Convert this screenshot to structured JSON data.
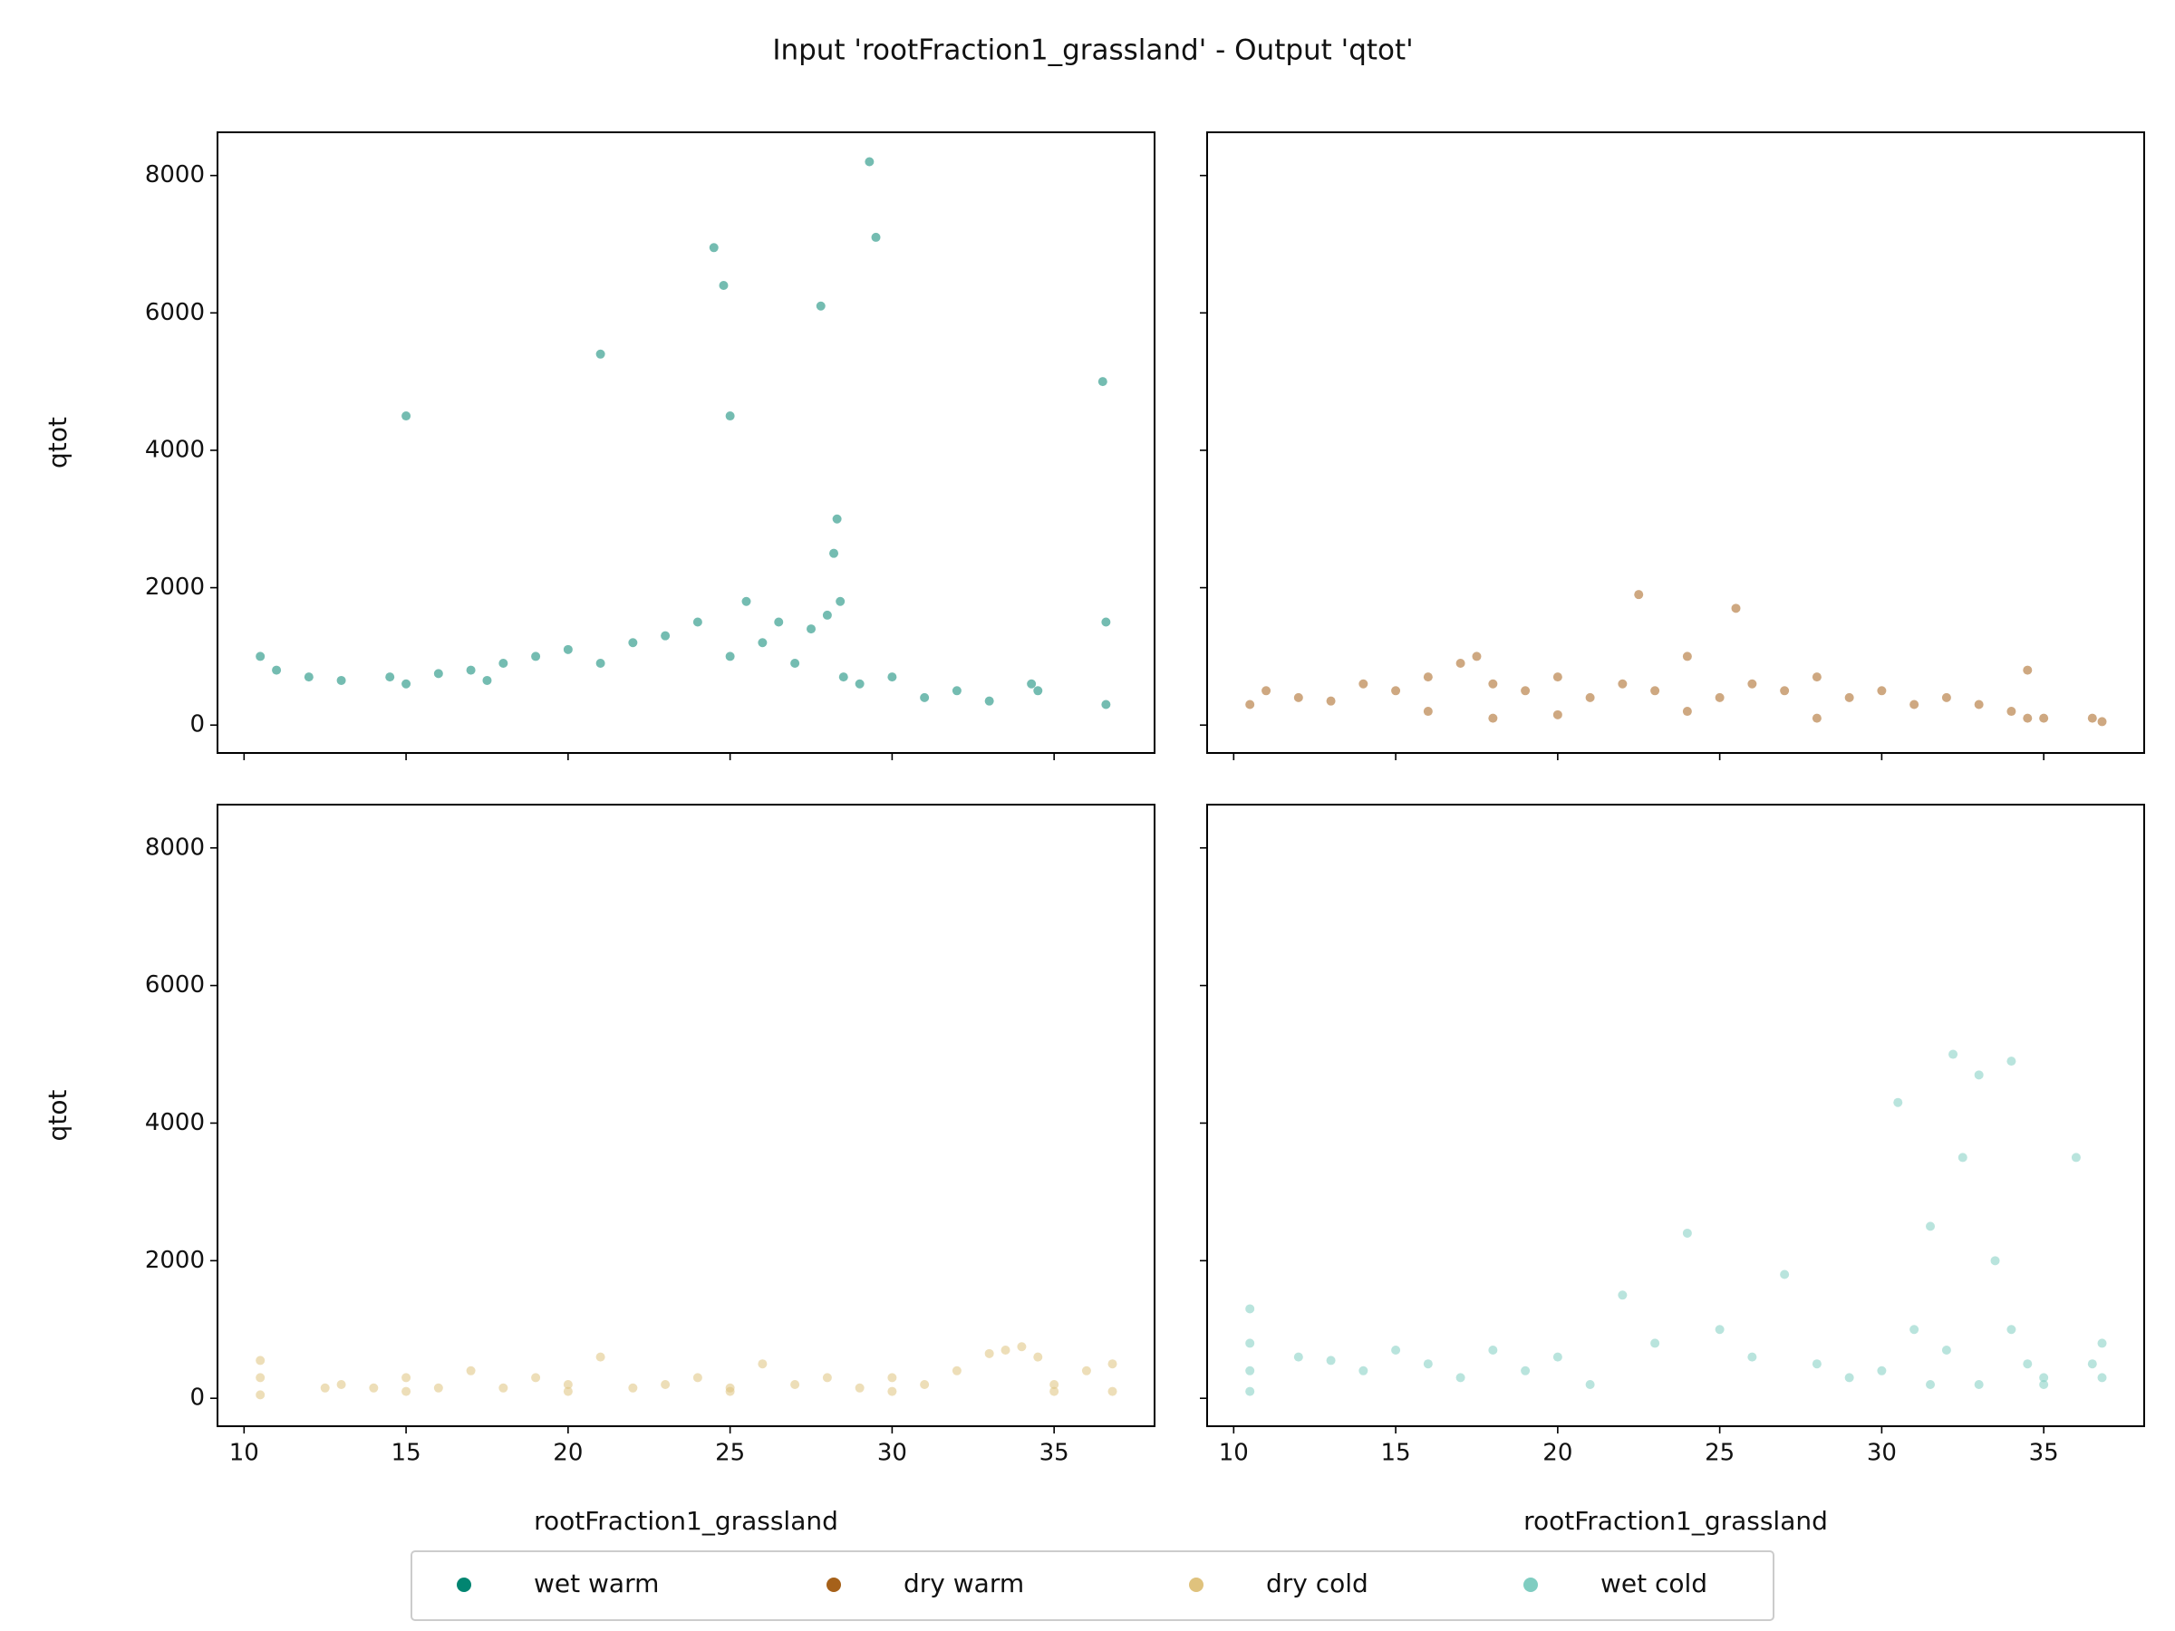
{
  "chart_data": {
    "type": "scatter",
    "title": "Input 'rootFraction1_grassland' - Output 'qtot'",
    "xlabel": "rootFraction1_grassland",
    "ylabel": "qtot",
    "xlim": [
      9.18,
      38.1
    ],
    "ylim": [
      -406,
      8629
    ],
    "xticks": [
      10,
      15,
      20,
      25,
      30,
      35
    ],
    "yticks": [
      0,
      2000,
      4000,
      6000,
      8000
    ],
    "series": [
      {
        "name": "wet warm",
        "color": "#018571",
        "x": [
          10.5,
          11,
          12,
          13,
          14.5,
          15,
          16,
          17,
          17.5,
          18,
          19,
          20,
          21,
          22,
          23,
          24,
          24.5,
          24.8,
          25,
          25.5,
          26,
          26.5,
          27,
          27.5,
          27.8,
          28,
          28.2,
          28.3,
          28.4,
          28.5,
          29,
          29.3,
          29.5,
          30,
          31,
          32,
          33,
          34.3,
          34.5,
          36.5,
          36.6,
          36.6,
          15,
          21,
          25
        ],
        "values": [
          1000,
          800,
          700,
          650,
          700,
          600,
          750,
          800,
          650,
          900,
          1000,
          1100,
          900,
          1200,
          1300,
          1500,
          6950,
          6400,
          1000,
          1800,
          1200,
          1500,
          900,
          1400,
          6100,
          1600,
          2500,
          3000,
          1800,
          700,
          600,
          8200,
          7100,
          700,
          400,
          500,
          350,
          600,
          500,
          5000,
          1500,
          300,
          4500,
          5400,
          4500
        ]
      },
      {
        "name": "dry warm",
        "color": "#a6611a",
        "x": [
          10.5,
          11,
          12,
          13,
          14,
          15,
          16,
          17,
          17.5,
          18,
          19,
          20,
          21,
          22,
          22.5,
          23,
          24,
          25,
          25.5,
          26,
          27,
          28,
          29,
          30,
          31,
          32,
          33,
          34,
          34.5,
          34.5,
          35,
          36.5,
          36.8,
          16,
          18,
          20,
          24,
          28
        ],
        "values": [
          300,
          500,
          400,
          350,
          600,
          500,
          700,
          900,
          1000,
          600,
          500,
          700,
          400,
          600,
          1900,
          500,
          1000,
          400,
          1700,
          600,
          500,
          700,
          400,
          500,
          300,
          400,
          300,
          200,
          800,
          100,
          100,
          100,
          50,
          200,
          100,
          150,
          200,
          100
        ]
      },
      {
        "name": "dry cold",
        "color": "#dfc27d",
        "x": [
          10.5,
          10.5,
          10.5,
          12.5,
          13,
          14,
          15,
          16,
          17,
          18,
          19,
          20,
          21,
          22,
          23,
          24,
          25,
          26,
          27,
          28,
          29,
          30,
          31,
          32,
          33,
          33.5,
          34,
          34.5,
          35,
          36,
          36.8,
          36.8,
          15,
          20,
          25,
          30,
          35
        ],
        "values": [
          50,
          300,
          550,
          150,
          200,
          150,
          300,
          150,
          400,
          150,
          300,
          200,
          600,
          150,
          200,
          300,
          150,
          500,
          200,
          300,
          150,
          300,
          200,
          400,
          650,
          700,
          750,
          600,
          200,
          400,
          100,
          500,
          100,
          100,
          100,
          100,
          100
        ]
      },
      {
        "name": "wet cold",
        "color": "#80cdc1",
        "x": [
          10.5,
          10.5,
          10.5,
          10.5,
          12,
          13,
          14,
          15,
          16,
          17,
          18,
          19,
          20,
          21,
          22,
          23,
          24,
          25,
          26,
          27,
          28,
          29,
          30,
          30.5,
          31,
          31.5,
          32,
          32.2,
          32.5,
          33,
          33.5,
          34,
          34,
          34.5,
          35,
          36,
          36.5,
          36.8,
          36.8,
          31.5,
          33,
          35
        ],
        "values": [
          100,
          400,
          800,
          1300,
          600,
          550,
          400,
          700,
          500,
          300,
          700,
          400,
          600,
          200,
          1500,
          800,
          2400,
          1000,
          600,
          1800,
          500,
          300,
          400,
          4300,
          1000,
          2500,
          700,
          5000,
          3500,
          4700,
          2000,
          4900,
          1000,
          500,
          300,
          3500,
          500,
          300,
          800,
          200,
          200,
          200
        ]
      }
    ]
  }
}
